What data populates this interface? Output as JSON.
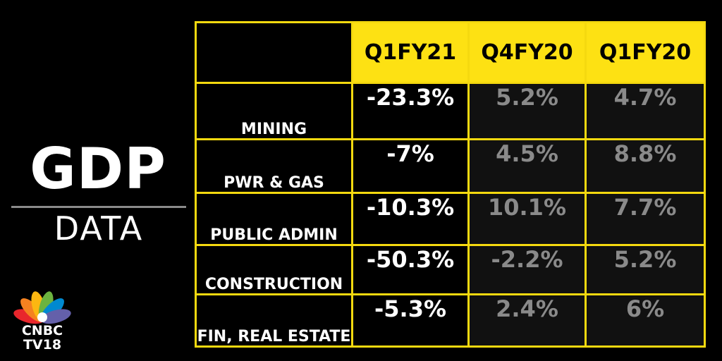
{
  "title": {
    "main": "GDP",
    "sub": "DATA"
  },
  "logo": {
    "line1": "CNBC",
    "line2": "TV18"
  },
  "table": {
    "columns": [
      "Q1FY21",
      "Q4FY20",
      "Q1FY20"
    ],
    "rows": [
      {
        "label": "MINING",
        "values": [
          "-23.3%",
          "5.2%",
          "4.7%"
        ]
      },
      {
        "label": "PWR & GAS",
        "values": [
          "-7%",
          "4.5%",
          "8.8%"
        ]
      },
      {
        "label": "PUBLIC ADMIN",
        "values": [
          "-10.3%",
          "10.1%",
          "7.7%"
        ]
      },
      {
        "label": "CONSTRUCTION",
        "values": [
          "-50.3%",
          "-2.2%",
          "5.2%"
        ]
      },
      {
        "label": "FIN, REAL ESTATE",
        "values": [
          "-5.3%",
          "2.4%",
          "6%"
        ]
      }
    ]
  },
  "colors": {
    "background": "#000000",
    "accent_yellow": "#fde113",
    "current_value": "#ffffff",
    "previous_value": "#8a8a8a"
  }
}
